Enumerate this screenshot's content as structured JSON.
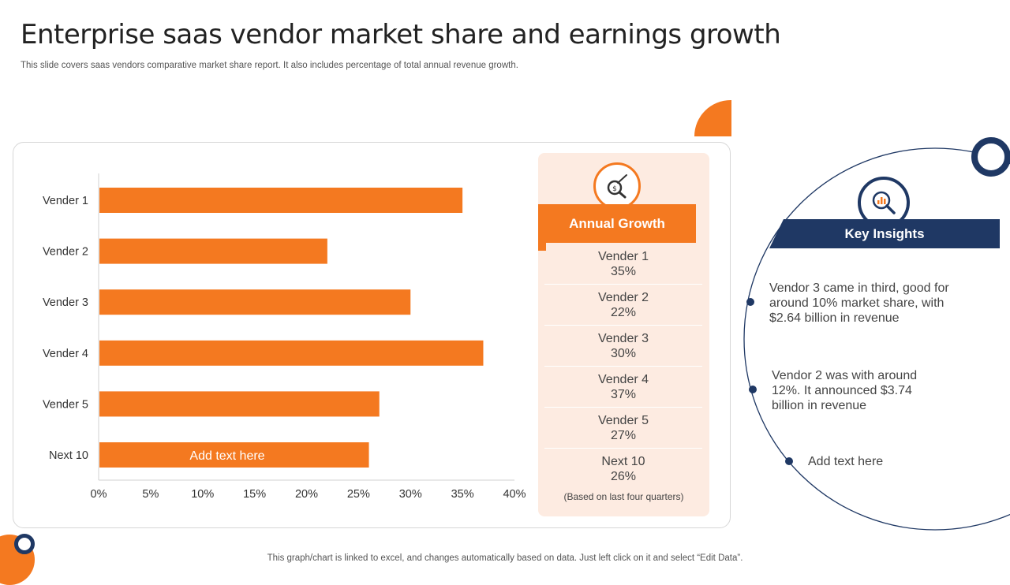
{
  "header": {
    "title": "Enterprise saas vendor market share and earnings growth",
    "subtitle": "This slide covers saas vendors comparative market share report. It also includes percentage of total annual revenue growth."
  },
  "chart_data": {
    "type": "bar",
    "orientation": "horizontal",
    "categories": [
      "Vender 1",
      "Vender 2",
      "Vender 3",
      "Vender 4",
      "Vender 5",
      "Next 10"
    ],
    "values": [
      35,
      22,
      30,
      37,
      27,
      26
    ],
    "xlim": [
      0,
      40
    ],
    "xticks": [
      "0%",
      "5%",
      "10%",
      "15%",
      "20%",
      "25%",
      "30%",
      "35%",
      "40%"
    ],
    "bar_annotation": {
      "category": "Next 10",
      "text": "Add text here"
    },
    "bar_color": "#f47920",
    "grid": false
  },
  "annual_growth": {
    "title": "Annual Growth",
    "items": [
      {
        "name": "Vender 1",
        "value": "35%"
      },
      {
        "name": "Vender 2",
        "value": "22%"
      },
      {
        "name": "Vender 3",
        "value": "30%"
      },
      {
        "name": "Vender 4",
        "value": "37%"
      },
      {
        "name": "Vender 5",
        "value": "27%"
      },
      {
        "name": "Next 10",
        "value": "26%"
      }
    ],
    "note": "(Based on last four quarters)"
  },
  "key_insights": {
    "title": "Key Insights",
    "items": [
      "Vendor 3 came in third, good for around 10% market share, with $2.64 billion in revenue",
      "Vendor 2 was with around 12%. It announced $3.74 billion in revenue",
      "Add text here"
    ]
  },
  "footer": {
    "text": "This graph/chart is linked to excel,  and changes automatically based on data. Just left click on it and select “Edit Data”."
  },
  "colors": {
    "accent": "#f47920",
    "navy": "#1f3864",
    "card_bg": "#fdebe1"
  },
  "icons": [
    "growth-magnifier-icon",
    "insights-magnifier-icon"
  ]
}
